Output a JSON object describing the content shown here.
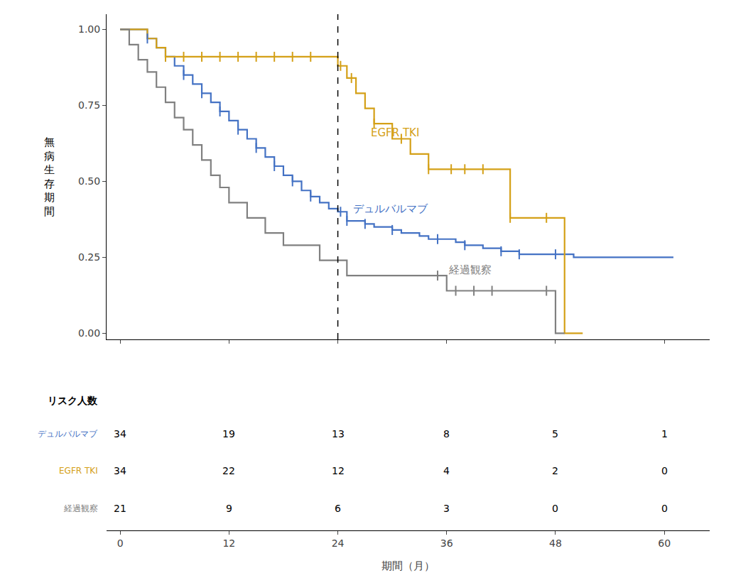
{
  "chart_data": {
    "type": "line",
    "line_style": "step",
    "xlabel": "期間（月）",
    "ylabel": "無\n病\n生\n存\n期\n間",
    "xlim": [
      -1.5,
      65
    ],
    "ylim": [
      -0.02,
      1.05
    ],
    "xticks": [
      0,
      12,
      24,
      36,
      48,
      60
    ],
    "yticks": [
      {
        "value": 0.0,
        "label": "0.00"
      },
      {
        "value": 0.25,
        "label": "0.25"
      },
      {
        "value": 0.5,
        "label": "0.50"
      },
      {
        "value": 0.75,
        "label": "0.75"
      },
      {
        "value": 1.0,
        "label": "1.00"
      }
    ],
    "grid": false,
    "series": [
      {
        "name": "デュルバルマブ",
        "color": "#4472c4",
        "x": [
          0,
          2,
          3,
          4,
          5,
          6,
          7,
          8,
          9,
          10,
          11,
          12,
          13,
          14,
          15,
          16,
          17,
          18,
          19,
          20,
          21,
          22,
          23,
          24,
          25,
          26,
          27,
          28,
          29,
          30,
          31,
          32,
          33,
          34,
          35,
          36,
          37,
          38,
          39,
          40,
          41,
          42,
          43,
          44,
          45,
          46,
          47,
          48,
          50,
          60,
          61
        ],
        "values": [
          1.0,
          1.0,
          0.97,
          0.94,
          0.91,
          0.88,
          0.85,
          0.82,
          0.79,
          0.76,
          0.73,
          0.7,
          0.67,
          0.64,
          0.61,
          0.58,
          0.55,
          0.52,
          0.5,
          0.47,
          0.45,
          0.43,
          0.41,
          0.4,
          0.37,
          0.37,
          0.36,
          0.35,
          0.35,
          0.34,
          0.33,
          0.33,
          0.32,
          0.31,
          0.31,
          0.31,
          0.3,
          0.29,
          0.29,
          0.28,
          0.28,
          0.27,
          0.27,
          0.26,
          0.26,
          0.26,
          0.26,
          0.26,
          0.25,
          0.25,
          0.25
        ],
        "censor_x": [
          3,
          5,
          7,
          9,
          11,
          13,
          15,
          17,
          19,
          21,
          24.3,
          25,
          27,
          30,
          35,
          38,
          42,
          44,
          48
        ],
        "censor_y": [
          0.97,
          0.91,
          0.85,
          0.79,
          0.73,
          0.67,
          0.61,
          0.55,
          0.5,
          0.45,
          0.4,
          0.37,
          0.36,
          0.34,
          0.31,
          0.29,
          0.27,
          0.26,
          0.26
        ]
      },
      {
        "name": "EGFR TKI",
        "color": "#d4a017",
        "x": [
          0,
          2,
          3,
          4,
          5,
          6,
          7,
          8,
          9,
          10,
          11,
          12,
          13,
          14,
          15,
          16,
          17,
          18,
          19,
          20,
          21,
          22,
          23,
          24,
          25,
          26,
          27,
          28,
          29,
          30,
          31,
          32,
          33,
          34,
          35,
          36,
          37,
          38,
          39,
          40,
          41,
          42,
          43,
          44,
          45,
          46,
          47,
          48,
          49,
          51
        ],
        "values": [
          1.0,
          1.0,
          0.97,
          0.94,
          0.91,
          0.91,
          0.91,
          0.91,
          0.91,
          0.91,
          0.91,
          0.91,
          0.91,
          0.91,
          0.91,
          0.91,
          0.91,
          0.91,
          0.91,
          0.91,
          0.91,
          0.91,
          0.91,
          0.88,
          0.84,
          0.79,
          0.74,
          0.69,
          0.69,
          0.64,
          0.64,
          0.59,
          0.59,
          0.54,
          0.54,
          0.54,
          0.54,
          0.54,
          0.54,
          0.54,
          0.54,
          0.54,
          0.38,
          0.38,
          0.38,
          0.38,
          0.38,
          0.38,
          0.0,
          0.0
        ],
        "censor_x": [
          5,
          7,
          9,
          11,
          13,
          15,
          17,
          19,
          21,
          24.3,
          25.5,
          28,
          31,
          34,
          36.5,
          38,
          40,
          43,
          47
        ],
        "censor_y": [
          0.91,
          0.91,
          0.91,
          0.91,
          0.91,
          0.91,
          0.91,
          0.91,
          0.91,
          0.88,
          0.84,
          0.69,
          0.64,
          0.54,
          0.54,
          0.54,
          0.54,
          0.38,
          0.38
        ]
      },
      {
        "name": "経過観察",
        "color": "#808080",
        "x": [
          0,
          1,
          2,
          3,
          4,
          5,
          6,
          7,
          8,
          9,
          10,
          11,
          12,
          13,
          14,
          15,
          16,
          17,
          18,
          19,
          20,
          21,
          22,
          23,
          24,
          25,
          26,
          28,
          30,
          32,
          35,
          36,
          37,
          38,
          39,
          40,
          41,
          42,
          43,
          44,
          45,
          46,
          47,
          48,
          49
        ],
        "values": [
          1.0,
          0.95,
          0.9,
          0.86,
          0.81,
          0.76,
          0.71,
          0.67,
          0.62,
          0.57,
          0.52,
          0.48,
          0.43,
          0.43,
          0.38,
          0.38,
          0.33,
          0.33,
          0.29,
          0.29,
          0.29,
          0.29,
          0.24,
          0.24,
          0.24,
          0.19,
          0.19,
          0.19,
          0.19,
          0.19,
          0.19,
          0.14,
          0.14,
          0.14,
          0.14,
          0.14,
          0.14,
          0.14,
          0.14,
          0.14,
          0.14,
          0.14,
          0.14,
          0.0,
          0.0
        ],
        "censor_x": [
          35,
          37,
          39,
          41,
          47
        ],
        "censor_y": [
          0.19,
          0.14,
          0.14,
          0.14,
          0.14
        ]
      }
    ],
    "vlines": [
      24
    ],
    "annotations": [
      {
        "text": "EGFR TKI",
        "x": 27.5,
        "y": 0.66,
        "color": "#d4a017"
      },
      {
        "text": "デュルバルマブ",
        "x": 25.5,
        "y": 0.41,
        "color": "#4472c4"
      },
      {
        "text": "経過観察",
        "x": 36.0,
        "y": 0.21,
        "color": "#808080"
      }
    ],
    "risk_table": {
      "title": "リスク人数",
      "x": [
        0,
        12,
        24,
        36,
        48,
        60
      ],
      "rows": [
        {
          "name": "デュルバルマブ",
          "color": "#4472c4",
          "values": [
            34,
            19,
            13,
            8,
            5,
            1
          ]
        },
        {
          "name": "EGFR TKI",
          "color": "#d4a017",
          "values": [
            34,
            22,
            12,
            4,
            2,
            0
          ]
        },
        {
          "name": "経過観察",
          "color": "#808080",
          "values": [
            21,
            9,
            6,
            3,
            0,
            0
          ]
        }
      ]
    }
  }
}
